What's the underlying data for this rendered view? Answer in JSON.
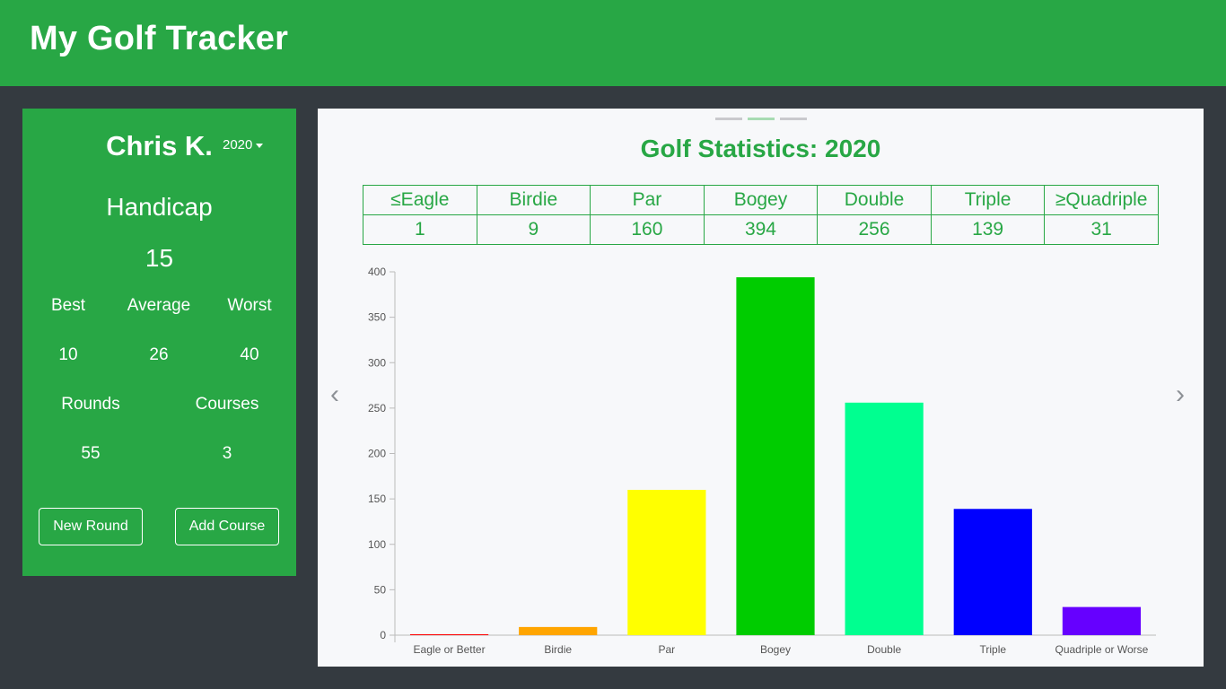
{
  "app": {
    "title": "My Golf Tracker"
  },
  "profile": {
    "name": "Chris K.",
    "year": "2020",
    "handicap_label": "Handicap",
    "handicap_value": "15",
    "best_label": "Best",
    "average_label": "Average",
    "worst_label": "Worst",
    "best_value": "10",
    "average_value": "26",
    "worst_value": "40",
    "rounds_label": "Rounds",
    "courses_label": "Courses",
    "rounds_value": "55",
    "courses_value": "3",
    "new_round_label": "New Round",
    "add_course_label": "Add Course"
  },
  "stats": {
    "title": "Golf Statistics: 2020",
    "headers": [
      "≤Eagle",
      "Birdie",
      "Par",
      "Bogey",
      "Double",
      "Triple",
      "≥Quadriple"
    ],
    "values": [
      "1",
      "9",
      "160",
      "394",
      "256",
      "139",
      "31"
    ]
  },
  "carousel": {
    "prev": "‹",
    "next": "›",
    "active_index": 1
  },
  "chart_data": {
    "type": "bar",
    "categories": [
      "Eagle or Better",
      "Birdie",
      "Par",
      "Bogey",
      "Double",
      "Triple",
      "Quadriple or Worse"
    ],
    "values": [
      1,
      9,
      160,
      394,
      256,
      139,
      31
    ],
    "colors": [
      "#ff0000",
      "#ffa500",
      "#ffff00",
      "#00cc00",
      "#00ff90",
      "#0000ff",
      "#6600ff"
    ],
    "ylim": [
      0,
      400
    ],
    "yticks": [
      0,
      50,
      100,
      150,
      200,
      250,
      300,
      350,
      400
    ],
    "title": "",
    "xlabel": "",
    "ylabel": "",
    "grid": false
  }
}
